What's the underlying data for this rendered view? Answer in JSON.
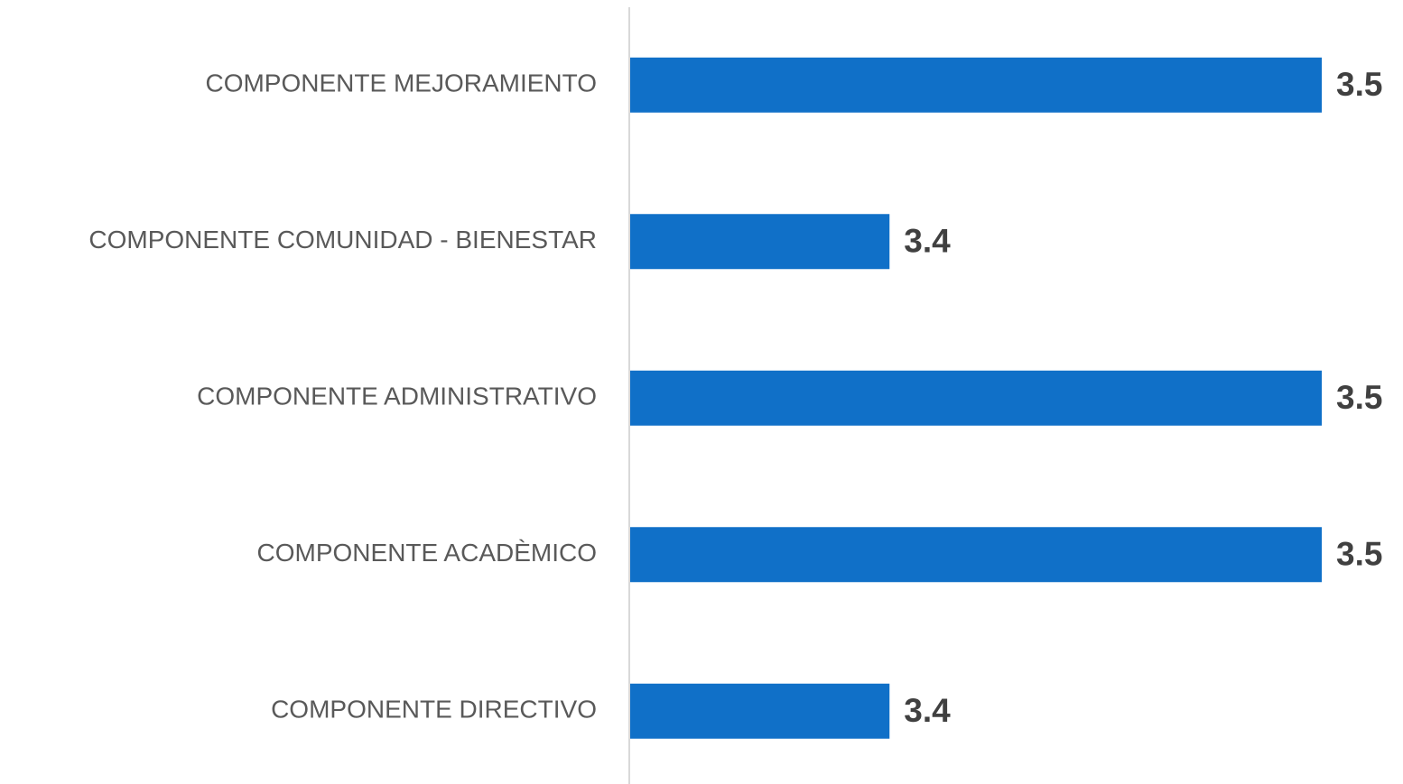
{
  "chart_data": {
    "type": "barh",
    "categories": [
      "COMPONENTE MEJORAMIENTO",
      "COMPONENTE COMUNIDAD - BIENESTAR",
      "COMPONENTE ADMINISTRATIVO",
      "COMPONENTE ACADÈMICO",
      "COMPONENTE DIRECTIVO"
    ],
    "values": [
      3.5,
      3.4,
      3.5,
      3.5,
      3.4
    ],
    "color": "#1070c8",
    "xlim": [
      3.34,
      3.5
    ]
  }
}
